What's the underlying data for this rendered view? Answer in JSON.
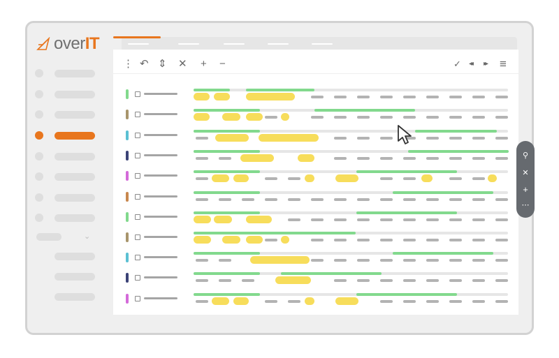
{
  "brand": {
    "logo_prefix": "over",
    "logo_suffix": "IT",
    "accent_color": "#e8761e"
  },
  "sidebar": {
    "items": [
      {
        "icon": "nav-dot",
        "active": false
      },
      {
        "icon": "nav-dot",
        "active": false
      },
      {
        "icon": "nav-dot",
        "active": false
      },
      {
        "icon": "nav-dot",
        "active": true
      },
      {
        "icon": "nav-dot",
        "active": false
      },
      {
        "icon": "nav-dot",
        "active": false
      },
      {
        "icon": "nav-dot",
        "active": false
      },
      {
        "icon": "nav-dot",
        "active": false
      }
    ],
    "group": {
      "icon": "chevron-down-icon",
      "expanded": true
    },
    "sub_item_count": 3
  },
  "toolbar": {
    "icons": [
      "more-vertical-icon",
      "undo-icon",
      "expand-collapse-icon",
      "close-icon",
      "zoom-in-icon",
      "zoom-out-icon",
      "check-dropdown-icon",
      "rewind-icon",
      "fast-forward-icon",
      "menu-icon"
    ],
    "glyphs": {
      "more": "⋮",
      "undo": "↶",
      "expand": "⇕",
      "close": "✕",
      "plus": "+",
      "minus": "−",
      "check": "✓",
      "rewind": "◂◂",
      "forward": "▸▸",
      "menu": "≡"
    }
  },
  "rows": [
    {
      "status_color": "#82d98d"
    },
    {
      "status_color": "#a8956c"
    },
    {
      "status_color": "#5bc0d3"
    },
    {
      "status_color": "#3c4377"
    },
    {
      "status_color": "#d46ad9"
    },
    {
      "status_color": "#c8884f"
    },
    {
      "status_color": "#82d98d"
    },
    {
      "status_color": "#a8956c"
    },
    {
      "status_color": "#5bc0d3"
    },
    {
      "status_color": "#3c4377"
    },
    {
      "status_color": "#d46ad9"
    }
  ],
  "floating_toolbar": {
    "icons": [
      "search-icon",
      "close-icon",
      "add-icon",
      "more-icon"
    ],
    "glyphs": {
      "search": "⚲",
      "close": "✕",
      "add": "+",
      "more": "⋯"
    }
  },
  "colors": {
    "bar_green": "#82d98d",
    "bar_yellow": "#f7dd5b",
    "bar_gray": "#b3b3b3"
  }
}
